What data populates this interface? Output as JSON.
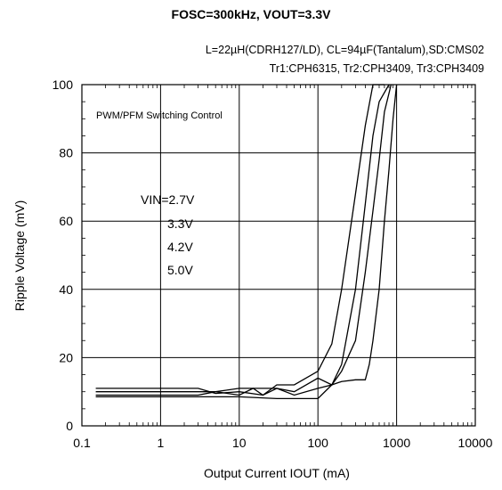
{
  "header": {
    "title": "FOSC=300kHz, VOUT=3.3V",
    "conditions_line1": "L=22µH(CDRH127/LD), CL=94µF(Tantalum),SD:CMS02",
    "conditions_line2": "Tr1:CPH6315, Tr2:CPH3409, Tr3:CPH3409"
  },
  "chart_data": {
    "type": "line",
    "title": "FOSC=300kHz, VOUT=3.3V",
    "xlabel": "Output Current  IOUT (mA)",
    "ylabel": "Ripple Voltage (mV)",
    "xscale": "log",
    "xlim": [
      0.1,
      10000
    ],
    "ylim": [
      0,
      100
    ],
    "x_ticks": [
      "0.1",
      "1",
      "10",
      "100",
      "1000",
      "10000"
    ],
    "y_ticks": [
      "0",
      "20",
      "40",
      "60",
      "80",
      "100"
    ],
    "grid": true,
    "annotations": {
      "mode": "PWM/PFM Switching Control",
      "vin_labels": [
        "VIN=2.7V",
        "3.3V",
        "4.2V",
        "5.0V"
      ]
    },
    "series": [
      {
        "name": "VIN=2.7V",
        "x": [
          0.15,
          0.3,
          1,
          3,
          5,
          10,
          20,
          30,
          50,
          100,
          150,
          200,
          300,
          400,
          500,
          600,
          700
        ],
        "y": [
          11,
          11,
          11,
          11,
          9.5,
          10,
          9,
          12,
          12,
          16,
          24,
          40,
          68,
          88,
          100,
          100,
          100
        ]
      },
      {
        "name": "3.3V",
        "x": [
          0.15,
          0.3,
          1,
          3,
          5,
          10,
          15,
          20,
          30,
          50,
          100,
          150,
          200,
          300,
          400,
          500,
          600,
          800
        ],
        "y": [
          10,
          10,
          10,
          10,
          10,
          9,
          11,
          9,
          11,
          10,
          14,
          12,
          18,
          40,
          65,
          85,
          95,
          100
        ]
      },
      {
        "name": "4.2V",
        "x": [
          0.15,
          0.3,
          1,
          3,
          5,
          10,
          30,
          50,
          100,
          150,
          200,
          300,
          400,
          500,
          600,
          700,
          850
        ],
        "y": [
          9,
          9,
          9,
          9,
          10,
          11,
          11,
          9,
          11,
          12,
          16,
          25,
          45,
          63,
          78,
          92,
          100
        ]
      },
      {
        "name": "5.0V",
        "x": [
          0.15,
          0.3,
          1,
          3,
          10,
          30,
          50,
          100,
          150,
          200,
          300,
          400,
          450,
          500,
          600,
          700,
          800,
          900,
          1000
        ],
        "y": [
          8.5,
          8.5,
          8.5,
          8.5,
          8.5,
          8,
          8,
          8,
          12,
          13,
          13.5,
          13.5,
          18,
          25,
          40,
          60,
          75,
          90,
          100
        ]
      }
    ]
  }
}
